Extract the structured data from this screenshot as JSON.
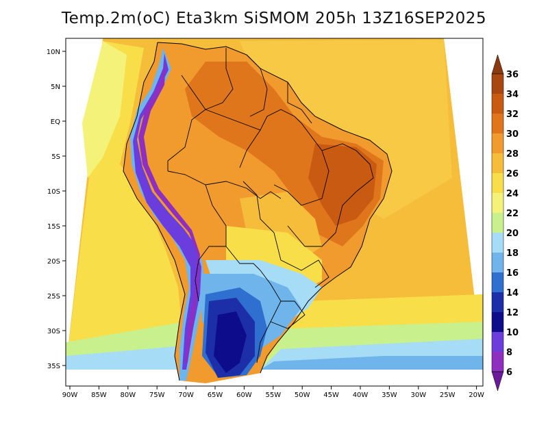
{
  "title": "Temp.2m(oC) Eta3km SiSMOM 205h 13Z16SEP2025",
  "map": {
    "lat_labels": [
      "10N",
      "5N",
      "EQ",
      "5S",
      "10S",
      "15S",
      "20S",
      "25S",
      "30S",
      "35S"
    ],
    "lon_labels": [
      "90W",
      "85W",
      "80W",
      "75W",
      "70W",
      "65W",
      "60W",
      "55W",
      "50W",
      "45W",
      "40W",
      "35W",
      "30W",
      "25W",
      "20W"
    ],
    "lat_range": [
      -38,
      11
    ],
    "lon_range": [
      -91,
      -20
    ]
  },
  "colorbar": {
    "labels": [
      "36",
      "34",
      "32",
      "30",
      "28",
      "26",
      "24",
      "22",
      "20",
      "18",
      "16",
      "14",
      "12",
      "10",
      "8",
      "6"
    ],
    "colors": [
      "#8b3a0f",
      "#a8470f",
      "#c95a12",
      "#e0761c",
      "#f19a2e",
      "#f5bd3a",
      "#f8df4a",
      "#f5f27a",
      "#c8f08c",
      "#a6dcf5",
      "#6fb4ea",
      "#2f6fcf",
      "#1c2fa8",
      "#0d0d8c",
      "#6a3ddc",
      "#8f2fbf",
      "#6b1a9a"
    ]
  }
}
